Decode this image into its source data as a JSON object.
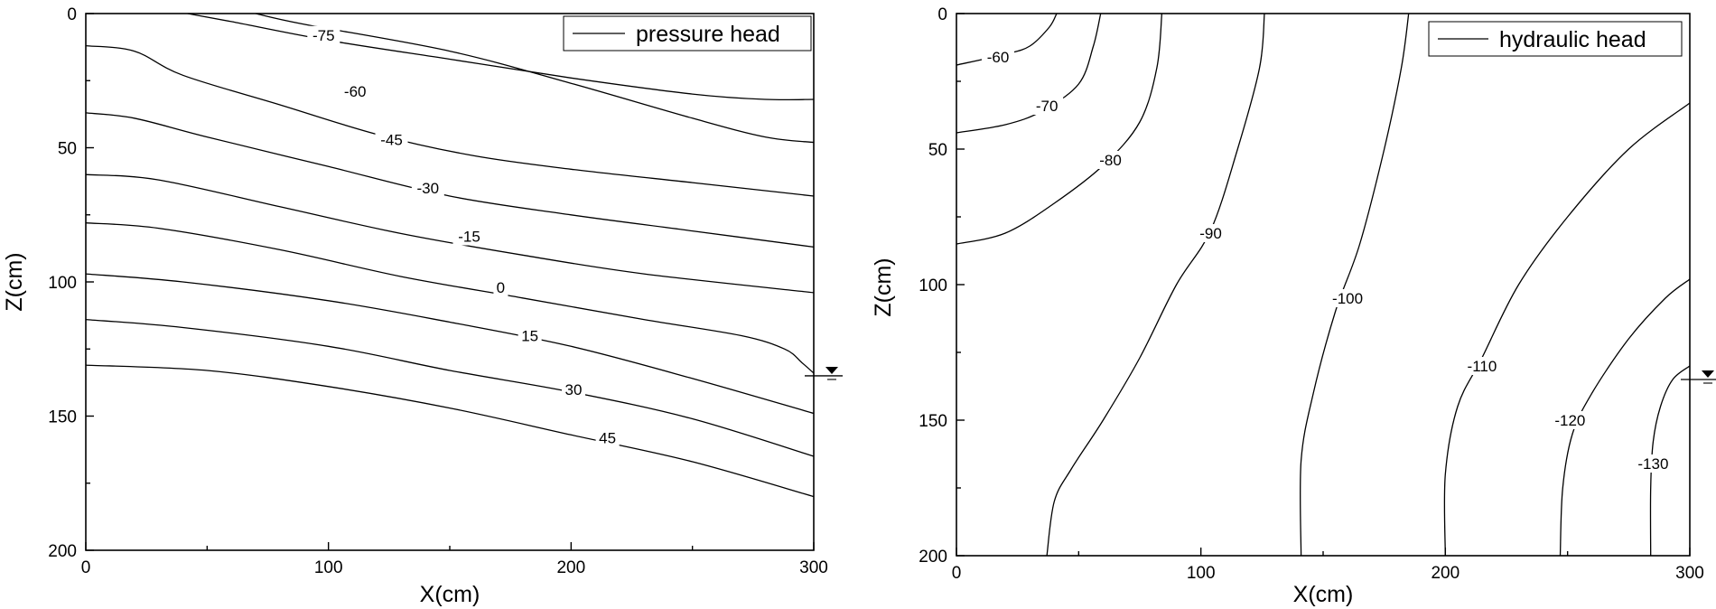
{
  "chart_data": [
    {
      "type": "contour",
      "legend": "pressure head",
      "legend_position": "top-right",
      "xlabel": "X(cm)",
      "ylabel": "Z(cm)",
      "xlim": [
        0,
        300
      ],
      "ylim": [
        0,
        200
      ],
      "y_axis_inverted": true,
      "grid": false,
      "x_ticks": [
        "0",
        "100",
        "200",
        "300"
      ],
      "y_ticks": [
        "0",
        "50",
        "100",
        "150",
        "200"
      ],
      "water_table_symbol": {
        "x": 300,
        "z": 135
      },
      "contours": [
        {
          "label": "-75",
          "label_at": [
            98,
            8
          ],
          "points": [
            [
              42,
              0
            ],
            [
              60,
              3
            ],
            [
              100,
              10
            ],
            [
              150,
              17
            ],
            [
              200,
              24
            ],
            [
              250,
              30
            ],
            [
              280,
              32
            ],
            [
              300,
              32
            ]
          ]
        },
        {
          "label": "-60",
          "label_at": [
            111,
            29
          ],
          "points": [
            [
              70,
              0
            ],
            [
              90,
              4
            ],
            [
              150,
              14
            ],
            [
              200,
              26
            ],
            [
              250,
              39
            ],
            [
              280,
              46
            ],
            [
              300,
              48
            ]
          ]
        },
        {
          "label": "-45",
          "label_at": [
            126,
            47
          ],
          "points": [
            [
              0,
              12
            ],
            [
              20,
              14
            ],
            [
              40,
              23
            ],
            [
              80,
              34
            ],
            [
              120,
              45
            ],
            [
              160,
              53
            ],
            [
              200,
              58
            ],
            [
              250,
              63
            ],
            [
              300,
              68
            ]
          ]
        },
        {
          "label": "-30",
          "label_at": [
            141,
            65
          ],
          "points": [
            [
              0,
              37
            ],
            [
              20,
              39
            ],
            [
              50,
              46
            ],
            [
              100,
              57
            ],
            [
              150,
              68
            ],
            [
              200,
              75
            ],
            [
              250,
              81
            ],
            [
              300,
              87
            ]
          ]
        },
        {
          "label": "-15",
          "label_at": [
            158,
            83
          ],
          "points": [
            [
              0,
              60
            ],
            [
              30,
              62
            ],
            [
              80,
              72
            ],
            [
              130,
              82
            ],
            [
              180,
              90
            ],
            [
              230,
              97
            ],
            [
              300,
              104
            ]
          ]
        },
        {
          "label": "0",
          "label_at": [
            171,
            102
          ],
          "points": [
            [
              0,
              78
            ],
            [
              30,
              80
            ],
            [
              80,
              88
            ],
            [
              130,
              98
            ],
            [
              180,
              106
            ],
            [
              230,
              114
            ],
            [
              270,
              120
            ],
            [
              288,
              125
            ],
            [
              295,
              130
            ],
            [
              300,
              134
            ]
          ]
        },
        {
          "label": "15",
          "label_at": [
            183,
            120
          ],
          "points": [
            [
              0,
              97
            ],
            [
              40,
              100
            ],
            [
              100,
              107
            ],
            [
              150,
              115
            ],
            [
              200,
              124
            ],
            [
              250,
              136
            ],
            [
              300,
              149
            ]
          ]
        },
        {
          "label": "30",
          "label_at": [
            201,
            140
          ],
          "points": [
            [
              0,
              114
            ],
            [
              40,
              117
            ],
            [
              100,
              124
            ],
            [
              150,
              133
            ],
            [
              200,
              141
            ],
            [
              250,
              151
            ],
            [
              300,
              165
            ]
          ]
        },
        {
          "label": "45",
          "label_at": [
            215,
            158
          ],
          "points": [
            [
              0,
              131
            ],
            [
              50,
              133
            ],
            [
              100,
              139
            ],
            [
              150,
              147
            ],
            [
              200,
              157
            ],
            [
              250,
              167
            ],
            [
              300,
              180
            ]
          ]
        }
      ]
    },
    {
      "type": "contour",
      "legend": "hydraulic head",
      "legend_position": "top-right",
      "xlabel": "X(cm)",
      "ylabel": "Z(cm)",
      "xlim": [
        0,
        300
      ],
      "ylim": [
        0,
        200
      ],
      "y_axis_inverted": true,
      "grid": false,
      "x_ticks": [
        "0",
        "100",
        "200",
        "300"
      ],
      "y_ticks": [
        "0",
        "50",
        "100",
        "150",
        "200"
      ],
      "water_table_symbol": {
        "x": 300,
        "z": 135
      },
      "contours": [
        {
          "label": "-60",
          "label_at": [
            17,
            16
          ],
          "points": [
            [
              0,
              19
            ],
            [
              20,
              15
            ],
            [
              30,
              12
            ],
            [
              38,
              5
            ],
            [
              41,
              0
            ]
          ]
        },
        {
          "label": "-70",
          "label_at": [
            37,
            34
          ],
          "points": [
            [
              0,
              44
            ],
            [
              20,
              41
            ],
            [
              35,
              36
            ],
            [
              50,
              26
            ],
            [
              56,
              12
            ],
            [
              59,
              0
            ]
          ]
        },
        {
          "label": "-80",
          "label_at": [
            63,
            54
          ],
          "points": [
            [
              0,
              85
            ],
            [
              20,
              81
            ],
            [
              40,
              70
            ],
            [
              60,
              56
            ],
            [
              75,
              40
            ],
            [
              82,
              20
            ],
            [
              84,
              0
            ]
          ]
        },
        {
          "label": "-90",
          "label_at": [
            104,
            81
          ],
          "points": [
            [
              37,
              200
            ],
            [
              40,
              180
            ],
            [
              47,
              168
            ],
            [
              60,
              150
            ],
            [
              75,
              127
            ],
            [
              90,
              100
            ],
            [
              104,
              80
            ],
            [
              115,
              50
            ],
            [
              124,
              20
            ],
            [
              126,
              0
            ]
          ]
        },
        {
          "label": "-100",
          "label_at": [
            160,
            105
          ],
          "points": [
            [
              141,
              200
            ],
            [
              141,
              165
            ],
            [
              146,
              140
            ],
            [
              155,
              110
            ],
            [
              165,
              85
            ],
            [
              175,
              50
            ],
            [
              182,
              20
            ],
            [
              185,
              0
            ]
          ]
        },
        {
          "label": "-110",
          "label_at": [
            215,
            130
          ],
          "points": [
            [
              200,
              200
            ],
            [
              200,
              170
            ],
            [
              205,
              145
            ],
            [
              215,
              127
            ],
            [
              230,
              100
            ],
            [
              250,
              75
            ],
            [
              275,
              50
            ],
            [
              300,
              33
            ]
          ]
        },
        {
          "label": "-120",
          "label_at": [
            251,
            150
          ],
          "points": [
            [
              247,
              200
            ],
            [
              248,
              175
            ],
            [
              252,
              155
            ],
            [
              260,
              140
            ],
            [
              275,
              120
            ],
            [
              290,
              105
            ],
            [
              300,
              98
            ]
          ]
        },
        {
          "label": "-130",
          "label_at": [
            285,
            166
          ],
          "points": [
            [
              284,
              200
            ],
            [
              284,
              175
            ],
            [
              285,
              158
            ],
            [
              288,
              145
            ],
            [
              293,
              135
            ],
            [
              300,
              130
            ]
          ]
        }
      ]
    }
  ]
}
